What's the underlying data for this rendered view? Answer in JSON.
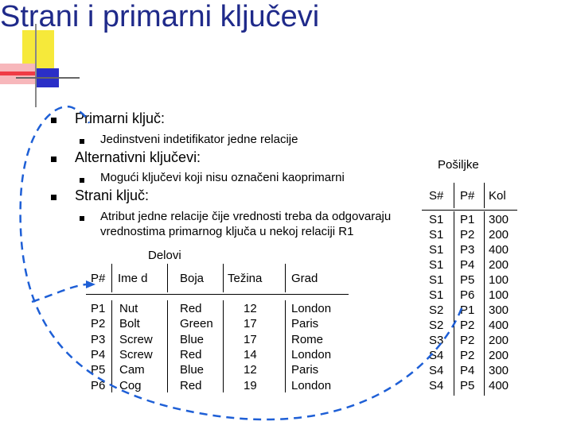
{
  "title": "Strani i primarni ključevi",
  "bullets": {
    "b1": "Primarni ključ:",
    "b1_sub": "Jedinstveni indetifikator jedne relacije",
    "b2": "Alternativni ključevi:",
    "b2_sub": "Mogući ključevi koji nisu označeni kaoprimarni",
    "b3": "Strani ključ:",
    "b3_sub_line1": "Atribut jedne relacije čije vrednosti treba da odgovaraju",
    "b3_sub_line2": "vrednostima primarnog ključa u nekoj relaciji R1"
  },
  "delovi": {
    "caption": "Delovi",
    "headers": [
      "P#",
      "Ime d",
      "Boja",
      "Težina",
      "Grad"
    ],
    "rows": [
      [
        "P1",
        "Nut",
        "Red",
        "12",
        "London"
      ],
      [
        "P2",
        "Bolt",
        "Green",
        "17",
        "Paris"
      ],
      [
        "P3",
        "Screw",
        "Blue",
        "17",
        "Rome"
      ],
      [
        "P4",
        "Screw",
        "Red",
        "14",
        "London"
      ],
      [
        "P5",
        "Cam",
        "Blue",
        "12",
        "Paris"
      ],
      [
        "P6",
        "Cog",
        "Red",
        "19",
        "London"
      ]
    ]
  },
  "posiljke": {
    "caption": "Pošiljke",
    "headers": [
      "S#",
      "P#",
      "Kol"
    ],
    "rows": [
      [
        "S1",
        "P1",
        "300"
      ],
      [
        "S1",
        "P2",
        "200"
      ],
      [
        "S1",
        "P3",
        "400"
      ],
      [
        "S1",
        "P4",
        "200"
      ],
      [
        "S1",
        "P5",
        "100"
      ],
      [
        "S1",
        "P6",
        "100"
      ],
      [
        "S2",
        "P1",
        "300"
      ],
      [
        "S2",
        "P2",
        "400"
      ],
      [
        "S3",
        "P2",
        "200"
      ],
      [
        "S4",
        "P2",
        "200"
      ],
      [
        "S4",
        "P4",
        "300"
      ],
      [
        "S4",
        "P5",
        "400"
      ]
    ]
  },
  "colors": {
    "title": "#1f2a8a",
    "deco_yellow": "#f6e93a",
    "deco_blue": "#2b2fc7",
    "deco_red": "#ef3b46",
    "highlight": "#1e5fd6"
  }
}
